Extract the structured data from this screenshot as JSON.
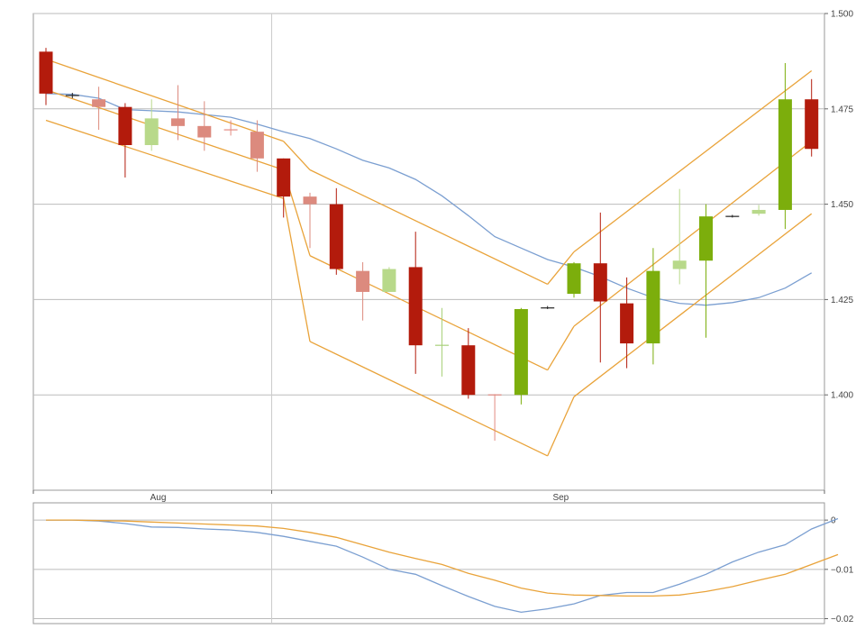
{
  "chart_data": [
    {
      "type": "candlestick",
      "panel": "price",
      "x_labels": [
        {
          "label": "Aug",
          "index": 4.25
        },
        {
          "label": "Sep",
          "index": 19.5
        }
      ],
      "month_separators": [
        8.55
      ],
      "yaxis_position": "right",
      "ylim": [
        1.375,
        1.5
      ],
      "yticks": [
        {
          "value": 1.4,
          "label": "1.400"
        },
        {
          "value": 1.425,
          "label": "1.425"
        },
        {
          "value": 1.45,
          "label": "1.450"
        },
        {
          "value": 1.475,
          "label": "1.475"
        },
        {
          "value": 1.5,
          "label": "1.500"
        }
      ],
      "candles": [
        {
          "open": 1.479,
          "high": 1.491,
          "low": 1.476,
          "close": 1.49,
          "color": "dark_red"
        },
        {
          "open": 1.4785,
          "high": 1.4792,
          "low": 1.4778,
          "close": 1.4785,
          "color": "doji"
        },
        {
          "open": 1.4775,
          "high": 1.4808,
          "low": 1.4695,
          "close": 1.4755,
          "color": "light_red"
        },
        {
          "open": 1.4755,
          "high": 1.4765,
          "low": 1.457,
          "close": 1.4655,
          "color": "dark_red"
        },
        {
          "open": 1.4655,
          "high": 1.4775,
          "low": 1.464,
          "close": 1.4725,
          "color": "light_green"
        },
        {
          "open": 1.4725,
          "high": 1.4812,
          "low": 1.4668,
          "close": 1.4705,
          "color": "light_red"
        },
        {
          "open": 1.4705,
          "high": 1.477,
          "low": 1.464,
          "close": 1.4675,
          "color": "light_red"
        },
        {
          "open": 1.4695,
          "high": 1.472,
          "low": 1.468,
          "close": 1.4695,
          "color": "doji_red"
        },
        {
          "open": 1.469,
          "high": 1.472,
          "low": 1.4585,
          "close": 1.462,
          "color": "light_red"
        },
        {
          "open": 1.462,
          "high": 1.462,
          "low": 1.4465,
          "close": 1.452,
          "color": "dark_red"
        },
        {
          "open": 1.452,
          "high": 1.453,
          "low": 1.4385,
          "close": 1.45,
          "color": "light_red"
        },
        {
          "open": 1.45,
          "high": 1.4542,
          "low": 1.4315,
          "close": 1.433,
          "color": "dark_red"
        },
        {
          "open": 1.4325,
          "high": 1.4348,
          "low": 1.4195,
          "close": 1.427,
          "color": "light_red"
        },
        {
          "open": 1.427,
          "high": 1.4335,
          "low": 1.427,
          "close": 1.433,
          "color": "light_green"
        },
        {
          "open": 1.4335,
          "high": 1.4428,
          "low": 1.4055,
          "close": 1.413,
          "color": "dark_red"
        },
        {
          "open": 1.413,
          "high": 1.4228,
          "low": 1.4048,
          "close": 1.413,
          "color": "doji_green"
        },
        {
          "open": 1.413,
          "high": 1.4175,
          "low": 1.399,
          "close": 1.4,
          "color": "dark_red"
        },
        {
          "open": 1.4,
          "high": 1.4002,
          "low": 1.388,
          "close": 1.4,
          "color": "doji_red"
        },
        {
          "open": 1.4,
          "high": 1.4228,
          "low": 1.3975,
          "close": 1.4225,
          "color": "green"
        },
        {
          "open": 1.4228,
          "high": 1.4233,
          "low": 1.4225,
          "close": 1.4228,
          "color": "doji"
        },
        {
          "open": 1.4265,
          "high": 1.4348,
          "low": 1.4255,
          "close": 1.4345,
          "color": "green"
        },
        {
          "open": 1.4345,
          "high": 1.4478,
          "low": 1.4085,
          "close": 1.4245,
          "color": "dark_red"
        },
        {
          "open": 1.424,
          "high": 1.4308,
          "low": 1.407,
          "close": 1.4135,
          "color": "dark_red"
        },
        {
          "open": 1.4135,
          "high": 1.4385,
          "low": 1.408,
          "close": 1.4325,
          "color": "green"
        },
        {
          "open": 1.433,
          "high": 1.454,
          "low": 1.429,
          "close": 1.4352,
          "color": "light_green"
        },
        {
          "open": 1.4352,
          "high": 1.45,
          "low": 1.415,
          "close": 1.4468,
          "color": "green"
        },
        {
          "open": 1.4468,
          "high": 1.4472,
          "low": 1.4465,
          "close": 1.4468,
          "color": "doji"
        },
        {
          "open": 1.4475,
          "high": 1.4498,
          "low": 1.447,
          "close": 1.4485,
          "color": "light_green"
        },
        {
          "open": 1.4485,
          "high": 1.487,
          "low": 1.4435,
          "close": 1.4775,
          "color": "green"
        },
        {
          "open": 1.4775,
          "high": 1.4828,
          "low": 1.4625,
          "close": 1.4645,
          "color": "dark_red"
        }
      ],
      "moving_average": [
        1.479,
        1.4788,
        1.4778,
        1.4748,
        1.4745,
        1.4742,
        1.4735,
        1.4728,
        1.471,
        1.469,
        1.4672,
        1.4645,
        1.4615,
        1.4595,
        1.4565,
        1.4522,
        1.447,
        1.4415,
        1.4385,
        1.4355,
        1.4335,
        1.431,
        1.428,
        1.4255,
        1.424,
        1.4235,
        1.4242,
        1.4255,
        1.428,
        1.432
      ],
      "channel_segments": [
        {
          "from": [
            0,
            1.488
          ],
          "to": [
            9,
            1.4665
          ]
        },
        {
          "from": [
            9,
            1.4665
          ],
          "to": [
            10,
            1.459
          ]
        },
        {
          "from": [
            10,
            1.459
          ],
          "to": [
            19,
            1.429
          ]
        },
        {
          "from": [
            19,
            1.429
          ],
          "to": [
            20,
            1.4375
          ]
        },
        {
          "from": [
            20,
            1.4375
          ],
          "to": [
            29,
            1.485
          ]
        },
        {
          "from": [
            0,
            1.48
          ],
          "to": [
            9,
            1.459
          ]
        },
        {
          "from": [
            9,
            1.459
          ],
          "to": [
            10,
            1.4365
          ]
        },
        {
          "from": [
            10,
            1.4365
          ],
          "to": [
            19,
            1.4065
          ]
        },
        {
          "from": [
            19,
            1.4065
          ],
          "to": [
            20,
            1.418
          ]
        },
        {
          "from": [
            20,
            1.418
          ],
          "to": [
            29,
            1.4665
          ]
        },
        {
          "from": [
            0,
            1.472
          ],
          "to": [
            9,
            1.4515
          ]
        },
        {
          "from": [
            9,
            1.4515
          ],
          "to": [
            10,
            1.414
          ]
        },
        {
          "from": [
            10,
            1.414
          ],
          "to": [
            19,
            1.384
          ]
        },
        {
          "from": [
            19,
            1.384
          ],
          "to": [
            20,
            1.3995
          ]
        },
        {
          "from": [
            20,
            1.3995
          ],
          "to": [
            29,
            1.4475
          ]
        }
      ],
      "colors": {
        "dark_red": "#b31b0c",
        "light_red": "#dc8a7e",
        "green": "#7cae0c",
        "light_green": "#b8d98a",
        "doji": "#222222",
        "doji_red": "#e28a80",
        "doji_green": "#a8d07a",
        "ma": "#7b9fd1",
        "channel": "#e9a33a",
        "grid": "#bbbbbb",
        "frame": "#999999"
      }
    },
    {
      "type": "line",
      "panel": "oscillator",
      "yaxis_position": "right",
      "ylim": [
        -0.021,
        0.0035
      ],
      "yticks": [
        {
          "value": 0,
          "label": "0"
        },
        {
          "value": -0.01,
          "label": "−0.01"
        },
        {
          "value": -0.02,
          "label": "−0.02"
        }
      ],
      "series": [
        {
          "color": "#7b9fd1",
          "values": [
            0,
            0,
            -0.0002,
            -0.0007,
            -0.0014,
            -0.0015,
            -0.0018,
            -0.002,
            -0.0025,
            -0.0033,
            -0.0043,
            -0.0053,
            -0.0075,
            -0.01,
            -0.011,
            -0.0133,
            -0.0155,
            -0.0175,
            -0.0187,
            -0.018,
            -0.017,
            -0.0153,
            -0.0147,
            -0.0147,
            -0.013,
            -0.011,
            -0.0085,
            -0.0065,
            -0.005,
            -0.0018,
            0.0003
          ]
        },
        {
          "color": "#e9a33a",
          "values": [
            0,
            0,
            -0.0001,
            -0.0002,
            -0.0004,
            -0.0006,
            -0.0008,
            -0.001,
            -0.0012,
            -0.0017,
            -0.0025,
            -0.0035,
            -0.005,
            -0.0065,
            -0.0078,
            -0.009,
            -0.0108,
            -0.0122,
            -0.0138,
            -0.0148,
            -0.0152,
            -0.0153,
            -0.0154,
            -0.0154,
            -0.0152,
            -0.0145,
            -0.0135,
            -0.0122,
            -0.011,
            -0.009,
            -0.007
          ]
        }
      ]
    }
  ]
}
